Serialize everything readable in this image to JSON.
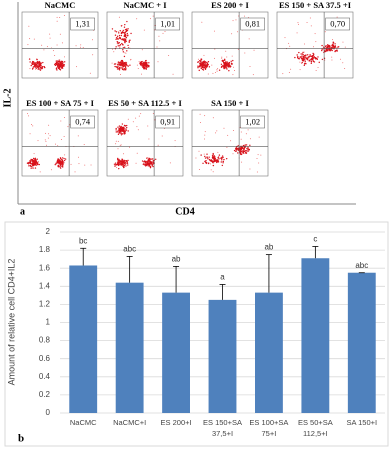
{
  "figure_a": {
    "label": "a",
    "y_label": "IL-2",
    "x_label": "CD4",
    "panels": [
      {
        "title": "NaCMC",
        "value": "1,31"
      },
      {
        "title": "NaCMC + I",
        "value": "1,01"
      },
      {
        "title": "ES 200 + I",
        "value": "0,81"
      },
      {
        "title": "ES 150 + SA 37.5 +I",
        "value": "0,70"
      },
      {
        "title": "ES 100 + SA 75 + I",
        "value": "0,74"
      },
      {
        "title": "ES 50 + SA 112.5 + I",
        "value": "0,91"
      },
      {
        "title": "SA 150 + I",
        "value": "1,02"
      }
    ]
  },
  "chart_data": {
    "type": "bar",
    "label": "b",
    "y_label": "Amount of relative cell CD4+IL2",
    "categories": [
      [
        "NaCMC"
      ],
      [
        "NaCMC+I"
      ],
      [
        "ES 200+I"
      ],
      [
        "ES 150+SA",
        "37,5+I"
      ],
      [
        "ES 100+SA",
        "75+I"
      ],
      [
        "ES 50+SA",
        "112,5+I"
      ],
      [
        "SA 150+I"
      ]
    ],
    "values": [
      1.63,
      1.44,
      1.33,
      1.25,
      1.33,
      1.71,
      1.55
    ],
    "errors": [
      0.19,
      0.29,
      0.29,
      0.17,
      0.42,
      0.13,
      0
    ],
    "annotations": [
      "bc",
      "abc",
      "ab",
      "a",
      "ab",
      "c",
      "abc"
    ],
    "color": "#4f81bd",
    "ylim": [
      0,
      2
    ],
    "yticks": [
      0,
      0.2,
      0.4,
      0.6,
      0.8,
      1,
      1.2,
      1.4,
      1.6,
      1.8,
      2
    ],
    "grid": true
  }
}
